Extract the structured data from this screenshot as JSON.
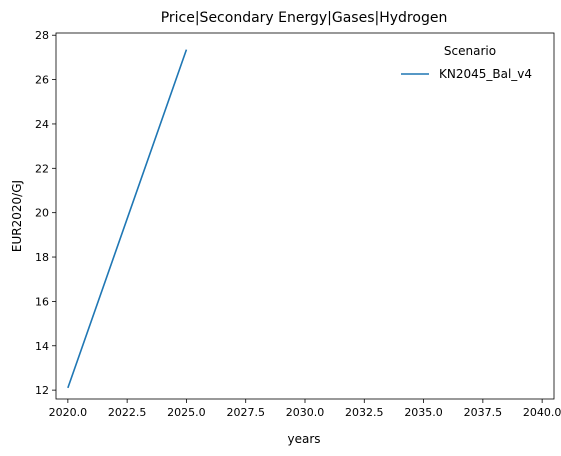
{
  "chart_data": {
    "type": "line",
    "title": "Price|Secondary Energy|Gases|Hydrogen",
    "xlabel": "years",
    "ylabel": "EUR2020/GJ",
    "xlim": [
      2019.5,
      2040.5
    ],
    "ylim": [
      11.6,
      28.1
    ],
    "xticks": [
      2020.0,
      2022.5,
      2025.0,
      2027.5,
      2030.0,
      2032.5,
      2035.0,
      2037.5,
      2040.0
    ],
    "xtick_labels": [
      "2020.0",
      "2022.5",
      "2025.0",
      "2027.5",
      "2030.0",
      "2032.5",
      "2035.0",
      "2037.5",
      "2040.0"
    ],
    "yticks": [
      12,
      14,
      16,
      18,
      20,
      22,
      24,
      26,
      28
    ],
    "ytick_labels": [
      "12",
      "14",
      "16",
      "18",
      "20",
      "22",
      "24",
      "26",
      "28"
    ],
    "grid": false,
    "legend": {
      "title": "Scenario",
      "placement": "top-right"
    },
    "series": [
      {
        "name": "KN2045_Bal_v4",
        "color": "#1f77b4",
        "x": [
          2020,
          2025
        ],
        "y": [
          12.1,
          27.35
        ]
      }
    ]
  }
}
